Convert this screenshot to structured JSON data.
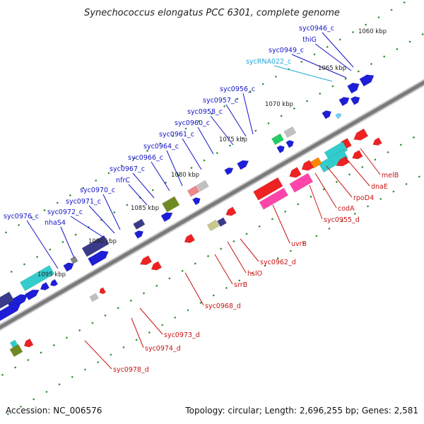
{
  "title": "Synechococcus elongatus PCC 6301, complete genome",
  "footer": {
    "accession": "Accession: NC_006576",
    "summary": "Topology: circular; Length: 2,696,255 bp; Genes: 2,581"
  },
  "colors": {
    "forward_label": "#1414c8",
    "reverse_label": "#c81414",
    "rna_label": "#22a8d8",
    "backbone": "#7a7a7a",
    "tick": "#2e8b2e"
  },
  "scale_labels": [
    "1060 kbp",
    "1065 kbp",
    "1070 kbp",
    "1075 kbp",
    "1080 kbp",
    "1085 kbp",
    "1090 kbp",
    "1095 kbp"
  ],
  "forward_genes": [
    "syc0946_c",
    "thiG",
    "syc0949_c",
    "sycRNA022_c",
    "syc0956_c",
    "syc0957_c",
    "syc0958_c",
    "syc0960_c",
    "syc0961_c",
    "syc0964_c",
    "syc0966_c",
    "syc0967_c",
    "nfrC",
    "syc0970_c",
    "syc0971_c",
    "syc0972_c",
    "syc0976_c",
    "nhaS4"
  ],
  "reverse_genes": [
    "melB",
    "dnaE",
    "rpoD4",
    "codA",
    "syc0955_d",
    "uvrB",
    "syc0962_d",
    "hslO",
    "srrB",
    "syc0968_d",
    "syc0973_d",
    "syc0974_d",
    "syc0978_d"
  ]
}
